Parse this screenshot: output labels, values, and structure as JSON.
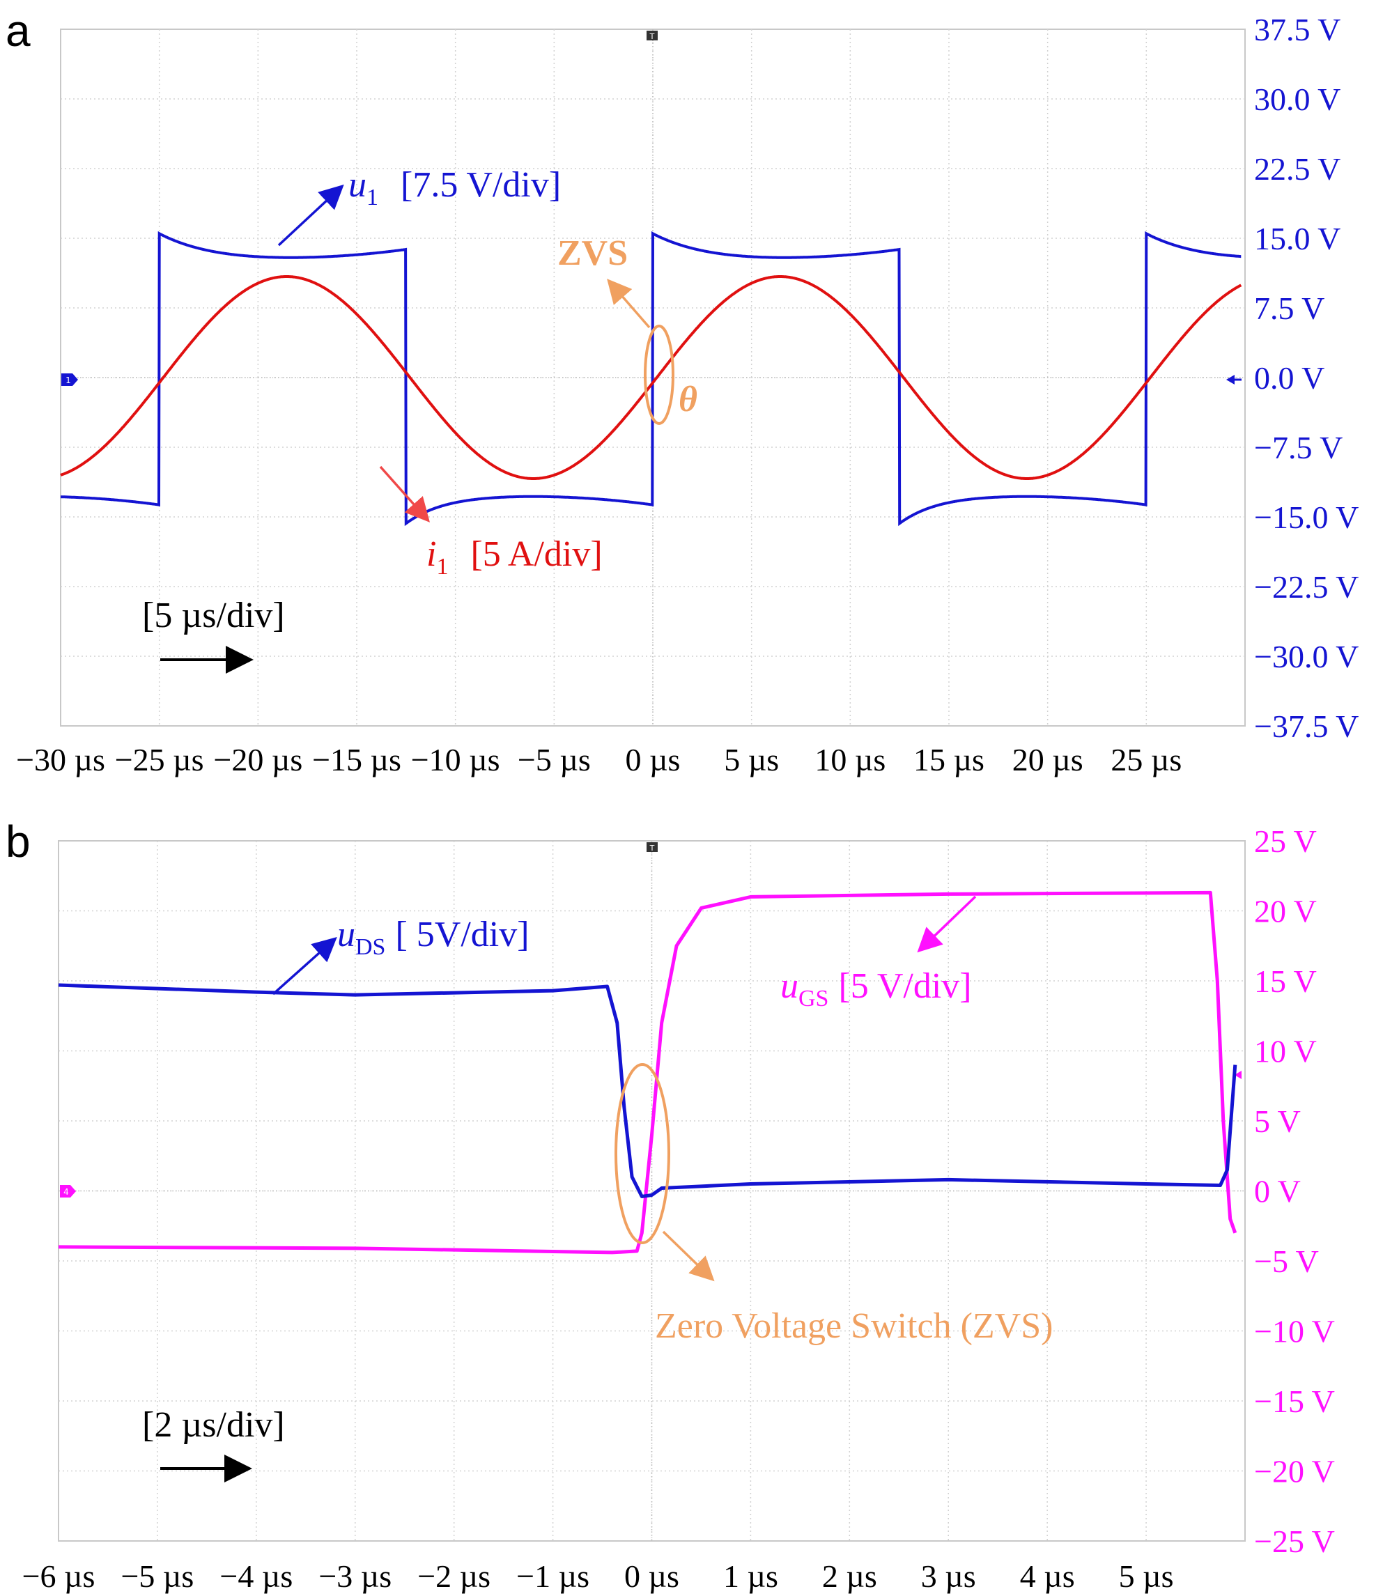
{
  "colors": {
    "u1": "#1414d2",
    "i1": "#e01010",
    "uds": "#1414d2",
    "ugs": "#ff10ff",
    "zvs": "#f0a060",
    "grid": "#c8c8c8",
    "text_black": "#000000"
  },
  "chart_data": [
    {
      "type": "line",
      "panel_label": "a",
      "x_unit": "µs",
      "xlim": [
        -30,
        30
      ],
      "ylim": [
        -37.5,
        37.5
      ],
      "x_ticks": [
        "−30 µs",
        "−25 µs",
        "−20 µs",
        "−15 µs",
        "−10 µs",
        "−5 µs",
        "0 µs",
        "5 µs",
        "10 µs",
        "15 µs",
        "20 µs",
        "25 µs"
      ],
      "y_ticks": [
        "37.5 V",
        "30.0 V",
        "22.5 V",
        "15.0 V",
        "7.5 V",
        "0.0 V",
        "−7.5 V",
        "−15.0 V",
        "−22.5 V",
        "−30.0 V",
        "−37.5 V"
      ],
      "period_us": 25,
      "series": [
        {
          "name": "u1",
          "kind": "square",
          "high": 13.8,
          "low": -13.5,
          "overshoot": 15.5,
          "rise_times_us": [
            -25,
            0,
            25
          ],
          "fall_times_us": [
            -12.5,
            12.5
          ]
        },
        {
          "name": "i1",
          "kind": "sine",
          "amplitude_divs": 1.45,
          "phase_zero_cross_us": 0.2
        }
      ],
      "annotations": {
        "u1_label": "u",
        "u1_sub": "1",
        "u1_scale": "[7.5 V/div]",
        "i1_label": "i",
        "i1_sub": "1",
        "i1_scale": "[5 A/div]",
        "zvs": "ZVS",
        "theta": "θ",
        "timebase": "[5 µs/div]",
        "channel_marker": "1"
      }
    },
    {
      "type": "line",
      "panel_label": "b",
      "x_unit": "µs",
      "xlim": [
        -6,
        6
      ],
      "ylim": [
        -25,
        25
      ],
      "x_ticks": [
        "−6 µs",
        "−5 µs",
        "−4 µs",
        "−3 µs",
        "−2 µs",
        "−1 µs",
        "0 µs",
        "1 µs",
        "2 µs",
        "3 µs",
        "4 µs",
        "5 µs"
      ],
      "y_ticks": [
        "25 V",
        "20 V",
        "15 V",
        "10 V",
        "5 V",
        "0 V",
        "−5 V",
        "−10 V",
        "−15 V",
        "−20 V",
        "−25 V"
      ],
      "series": [
        {
          "name": "uDS",
          "points": [
            [
              -6,
              14.7
            ],
            [
              -4,
              14.2
            ],
            [
              -3,
              14.0
            ],
            [
              -1,
              14.3
            ],
            [
              -0.45,
              14.6
            ],
            [
              -0.35,
              12
            ],
            [
              -0.28,
              6
            ],
            [
              -0.2,
              1
            ],
            [
              -0.1,
              -0.4
            ],
            [
              0,
              -0.3
            ],
            [
              0.1,
              0.2
            ],
            [
              1,
              0.5
            ],
            [
              3,
              0.8
            ],
            [
              5,
              0.5
            ],
            [
              5.75,
              0.4
            ],
            [
              5.82,
              1.5
            ],
            [
              5.9,
              9
            ]
          ]
        },
        {
          "name": "uGS",
          "points": [
            [
              -6,
              -4.0
            ],
            [
              -3,
              -4.1
            ],
            [
              -0.4,
              -4.4
            ],
            [
              -0.15,
              -4.3
            ],
            [
              -0.1,
              -3
            ],
            [
              0,
              4
            ],
            [
              0.1,
              12
            ],
            [
              0.25,
              17.5
            ],
            [
              0.5,
              20.2
            ],
            [
              1,
              21.0
            ],
            [
              3,
              21.2
            ],
            [
              5.65,
              21.3
            ],
            [
              5.72,
              15
            ],
            [
              5.78,
              5
            ],
            [
              5.85,
              -2
            ],
            [
              5.9,
              -3
            ]
          ]
        }
      ],
      "annotations": {
        "uds_label": "u",
        "uds_sub": "DS",
        "uds_scale": "[ 5V/div]",
        "ugs_label": "u",
        "ugs_sub": "GS",
        "ugs_scale": "[5 V/div]",
        "zvs": "Zero Voltage Switch (ZVS)",
        "timebase": "[2 µs/div]",
        "channel_marker": "4"
      }
    }
  ]
}
